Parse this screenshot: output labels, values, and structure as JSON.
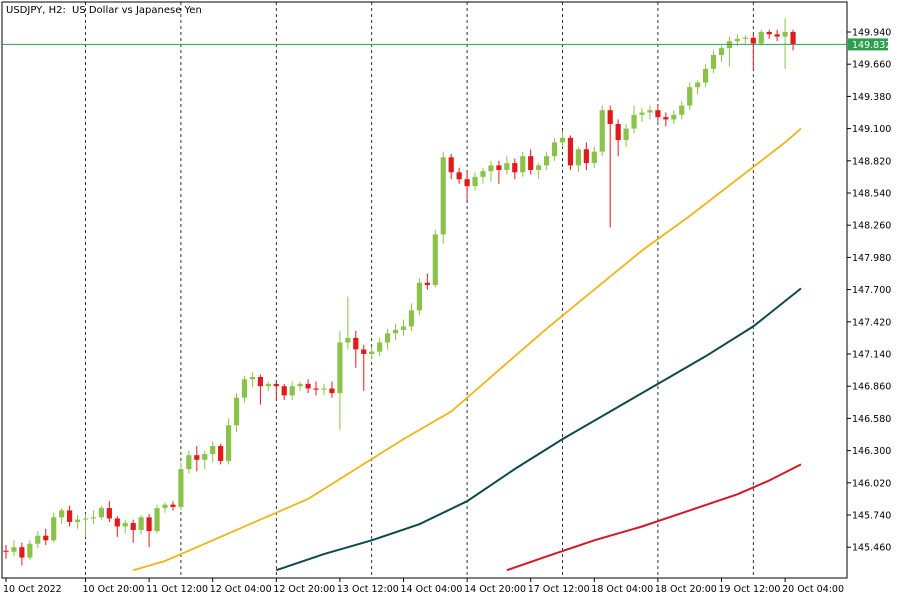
{
  "header": {
    "symbol": "USDJPY, H2:",
    "description": "US Dollar vs Japanese Yen"
  },
  "chart_data": {
    "type": "candlestick",
    "title": "USDJPY, H2:  US Dollar vs Japanese Yen",
    "ylim": [
      145.25,
      150.1
    ],
    "grid": "vertical-dashed",
    "colors": {
      "bull": "#8bc34a",
      "bear": "#e31a1c",
      "current_price_line": "#2e9e4f",
      "ma_fast": "#f0b419",
      "ma_mid": "#0f4a4a",
      "ma_slow": "#d11a24"
    },
    "y_ticks": [
      "149.940",
      "149.660",
      "149.380",
      "149.100",
      "148.820",
      "148.540",
      "148.260",
      "147.980",
      "147.700",
      "147.420",
      "147.140",
      "146.860",
      "146.580",
      "146.300",
      "146.020",
      "145.740",
      "145.460"
    ],
    "x_ticks": [
      {
        "label": "10 Oct 2022",
        "index": 0
      },
      {
        "label": "10 Oct 20:00",
        "index": 10
      },
      {
        "label": "11 Oct 12:00",
        "index": 18
      },
      {
        "label": "12 Oct 04:00",
        "index": 26
      },
      {
        "label": "12 Oct 20:00",
        "index": 34
      },
      {
        "label": "13 Oct 12:00",
        "index": 42
      },
      {
        "label": "14 Oct 04:00",
        "index": 50
      },
      {
        "label": "14 Oct 20:00",
        "index": 58
      },
      {
        "label": "17 Oct 12:00",
        "index": 66
      },
      {
        "label": "18 Oct 04:00",
        "index": 74
      },
      {
        "label": "18 Oct 20:00",
        "index": 82
      },
      {
        "label": "19 Oct 12:00",
        "index": 90
      },
      {
        "label": "20 Oct 04:00",
        "index": 98
      }
    ],
    "session_separators": [
      10,
      22,
      34,
      46,
      58,
      70,
      82,
      94
    ],
    "current_price": "149.832",
    "candles": [
      [
        145.43,
        145.48,
        145.36,
        145.42
      ],
      [
        145.42,
        145.52,
        145.38,
        145.46
      ],
      [
        145.46,
        145.5,
        145.3,
        145.37
      ],
      [
        145.37,
        145.52,
        145.35,
        145.49
      ],
      [
        145.49,
        145.6,
        145.45,
        145.56
      ],
      [
        145.56,
        145.62,
        145.48,
        145.52
      ],
      [
        145.52,
        145.76,
        145.5,
        145.72
      ],
      [
        145.72,
        145.8,
        145.66,
        145.78
      ],
      [
        145.78,
        145.82,
        145.64,
        145.68
      ],
      [
        145.68,
        145.74,
        145.62,
        145.7
      ],
      [
        145.7,
        145.75,
        145.55,
        145.71
      ],
      [
        145.71,
        145.78,
        145.66,
        145.72
      ],
      [
        145.72,
        145.82,
        145.7,
        145.8
      ],
      [
        145.8,
        145.86,
        145.68,
        145.71
      ],
      [
        145.71,
        145.73,
        145.55,
        145.64
      ],
      [
        145.64,
        145.7,
        145.58,
        145.67
      ],
      [
        145.67,
        145.7,
        145.5,
        145.61
      ],
      [
        145.61,
        145.74,
        145.57,
        145.72
      ],
      [
        145.72,
        145.75,
        145.46,
        145.6
      ],
      [
        145.6,
        145.83,
        145.58,
        145.8
      ],
      [
        145.8,
        145.85,
        145.76,
        145.83
      ],
      [
        145.83,
        145.86,
        145.78,
        145.81
      ],
      [
        145.81,
        146.2,
        145.78,
        146.14
      ],
      [
        146.14,
        146.3,
        146.1,
        146.26
      ],
      [
        146.26,
        146.34,
        146.12,
        146.22
      ],
      [
        146.22,
        146.3,
        146.14,
        146.27
      ],
      [
        146.27,
        146.38,
        146.2,
        146.34
      ],
      [
        146.34,
        146.36,
        146.18,
        146.21
      ],
      [
        146.21,
        146.58,
        146.18,
        146.52
      ],
      [
        146.52,
        146.8,
        146.46,
        146.76
      ],
      [
        146.76,
        146.95,
        146.72,
        146.92
      ],
      [
        146.92,
        146.98,
        146.85,
        146.94
      ],
      [
        146.94,
        146.96,
        146.7,
        146.86
      ],
      [
        146.86,
        146.9,
        146.82,
        146.88
      ],
      [
        146.88,
        146.9,
        146.74,
        146.86
      ],
      [
        146.86,
        146.88,
        146.74,
        146.78
      ],
      [
        146.78,
        146.9,
        146.74,
        146.86
      ],
      [
        146.86,
        146.9,
        146.82,
        146.88
      ],
      [
        146.88,
        146.92,
        146.8,
        146.84
      ],
      [
        146.84,
        146.9,
        146.78,
        146.83
      ],
      [
        146.83,
        146.88,
        146.78,
        146.84
      ],
      [
        146.84,
        146.9,
        146.76,
        146.8
      ],
      [
        146.8,
        147.34,
        146.48,
        147.24
      ],
      [
        147.24,
        147.64,
        147.18,
        147.28
      ],
      [
        147.28,
        147.34,
        147.02,
        147.18
      ],
      [
        147.18,
        147.22,
        146.82,
        147.14
      ],
      [
        147.14,
        147.2,
        147.1,
        147.16
      ],
      [
        147.16,
        147.28,
        147.12,
        147.24
      ],
      [
        147.24,
        147.36,
        147.18,
        147.32
      ],
      [
        147.32,
        147.4,
        147.26,
        147.35
      ],
      [
        147.35,
        147.44,
        147.3,
        147.38
      ],
      [
        147.38,
        147.58,
        147.34,
        147.52
      ],
      [
        147.52,
        147.8,
        147.48,
        147.76
      ],
      [
        147.76,
        147.84,
        147.7,
        147.74
      ],
      [
        147.74,
        148.22,
        147.72,
        148.18
      ],
      [
        148.18,
        148.9,
        148.1,
        148.85
      ],
      [
        148.85,
        148.88,
        148.66,
        148.72
      ],
      [
        148.72,
        148.76,
        148.62,
        148.66
      ],
      [
        148.66,
        148.72,
        148.48,
        148.6
      ],
      [
        148.6,
        148.72,
        148.56,
        148.68
      ],
      [
        148.68,
        148.76,
        148.62,
        148.73
      ],
      [
        148.73,
        148.82,
        148.64,
        148.78
      ],
      [
        148.78,
        148.82,
        148.62,
        148.74
      ],
      [
        148.74,
        148.86,
        148.7,
        148.8
      ],
      [
        148.8,
        148.84,
        148.66,
        148.72
      ],
      [
        148.72,
        148.9,
        148.68,
        148.86
      ],
      [
        148.86,
        148.92,
        148.7,
        148.74
      ],
      [
        148.74,
        148.8,
        148.66,
        148.78
      ],
      [
        148.78,
        148.9,
        148.74,
        148.86
      ],
      [
        148.86,
        149.02,
        148.82,
        148.98
      ],
      [
        148.98,
        149.08,
        148.94,
        149.02
      ],
      [
        149.02,
        149.04,
        148.74,
        148.78
      ],
      [
        148.78,
        148.94,
        148.72,
        148.92
      ],
      [
        148.92,
        148.98,
        148.74,
        148.8
      ],
      [
        148.8,
        148.94,
        148.76,
        148.9
      ],
      [
        148.9,
        149.3,
        148.86,
        149.26
      ],
      [
        149.26,
        149.3,
        148.24,
        149.14
      ],
      [
        149.14,
        149.18,
        148.86,
        149.0
      ],
      [
        149.0,
        149.14,
        148.94,
        149.1
      ],
      [
        149.1,
        149.3,
        149.06,
        149.22
      ],
      [
        149.22,
        149.28,
        149.16,
        149.24
      ],
      [
        149.24,
        149.3,
        149.18,
        149.26
      ],
      [
        149.26,
        149.3,
        149.16,
        149.2
      ],
      [
        149.2,
        149.24,
        149.12,
        149.18
      ],
      [
        149.18,
        149.26,
        149.14,
        149.22
      ],
      [
        149.22,
        149.34,
        149.18,
        149.3
      ],
      [
        149.3,
        149.5,
        149.26,
        149.46
      ],
      [
        149.46,
        149.52,
        149.4,
        149.5
      ],
      [
        149.5,
        149.66,
        149.46,
        149.62
      ],
      [
        149.62,
        149.78,
        149.58,
        149.74
      ],
      [
        149.74,
        149.82,
        149.68,
        149.8
      ],
      [
        149.8,
        149.9,
        149.64,
        149.86
      ],
      [
        149.86,
        149.92,
        149.82,
        149.88
      ],
      [
        149.88,
        149.91,
        149.84,
        149.89
      ],
      [
        149.89,
        149.92,
        149.62,
        149.84
      ],
      [
        149.84,
        149.96,
        149.82,
        149.94
      ],
      [
        149.94,
        149.96,
        149.88,
        149.92
      ],
      [
        149.92,
        149.96,
        149.86,
        149.9
      ],
      [
        149.9,
        150.06,
        149.62,
        149.94
      ],
      [
        149.94,
        149.96,
        149.78,
        149.832
      ]
    ],
    "ma_fast": [
      [
        16,
        145.26
      ],
      [
        20,
        145.34
      ],
      [
        26,
        145.52
      ],
      [
        32,
        145.7
      ],
      [
        38,
        145.88
      ],
      [
        44,
        146.14
      ],
      [
        50,
        146.4
      ],
      [
        56,
        146.64
      ],
      [
        62,
        147.0
      ],
      [
        68,
        147.36
      ],
      [
        74,
        147.7
      ],
      [
        80,
        148.04
      ],
      [
        86,
        148.34
      ],
      [
        92,
        148.66
      ],
      [
        98,
        148.98
      ],
      [
        100,
        149.1
      ]
    ],
    "ma_mid": [
      [
        34,
        145.26
      ],
      [
        40,
        145.4
      ],
      [
        46,
        145.52
      ],
      [
        52,
        145.66
      ],
      [
        58,
        145.86
      ],
      [
        64,
        146.14
      ],
      [
        70,
        146.4
      ],
      [
        76,
        146.64
      ],
      [
        82,
        146.88
      ],
      [
        88,
        147.12
      ],
      [
        94,
        147.38
      ],
      [
        100,
        147.71
      ]
    ],
    "ma_slow": [
      [
        63,
        145.26
      ],
      [
        68,
        145.38
      ],
      [
        74,
        145.52
      ],
      [
        80,
        145.64
      ],
      [
        86,
        145.78
      ],
      [
        92,
        145.92
      ],
      [
        96,
        146.04
      ],
      [
        100,
        146.18
      ]
    ]
  }
}
